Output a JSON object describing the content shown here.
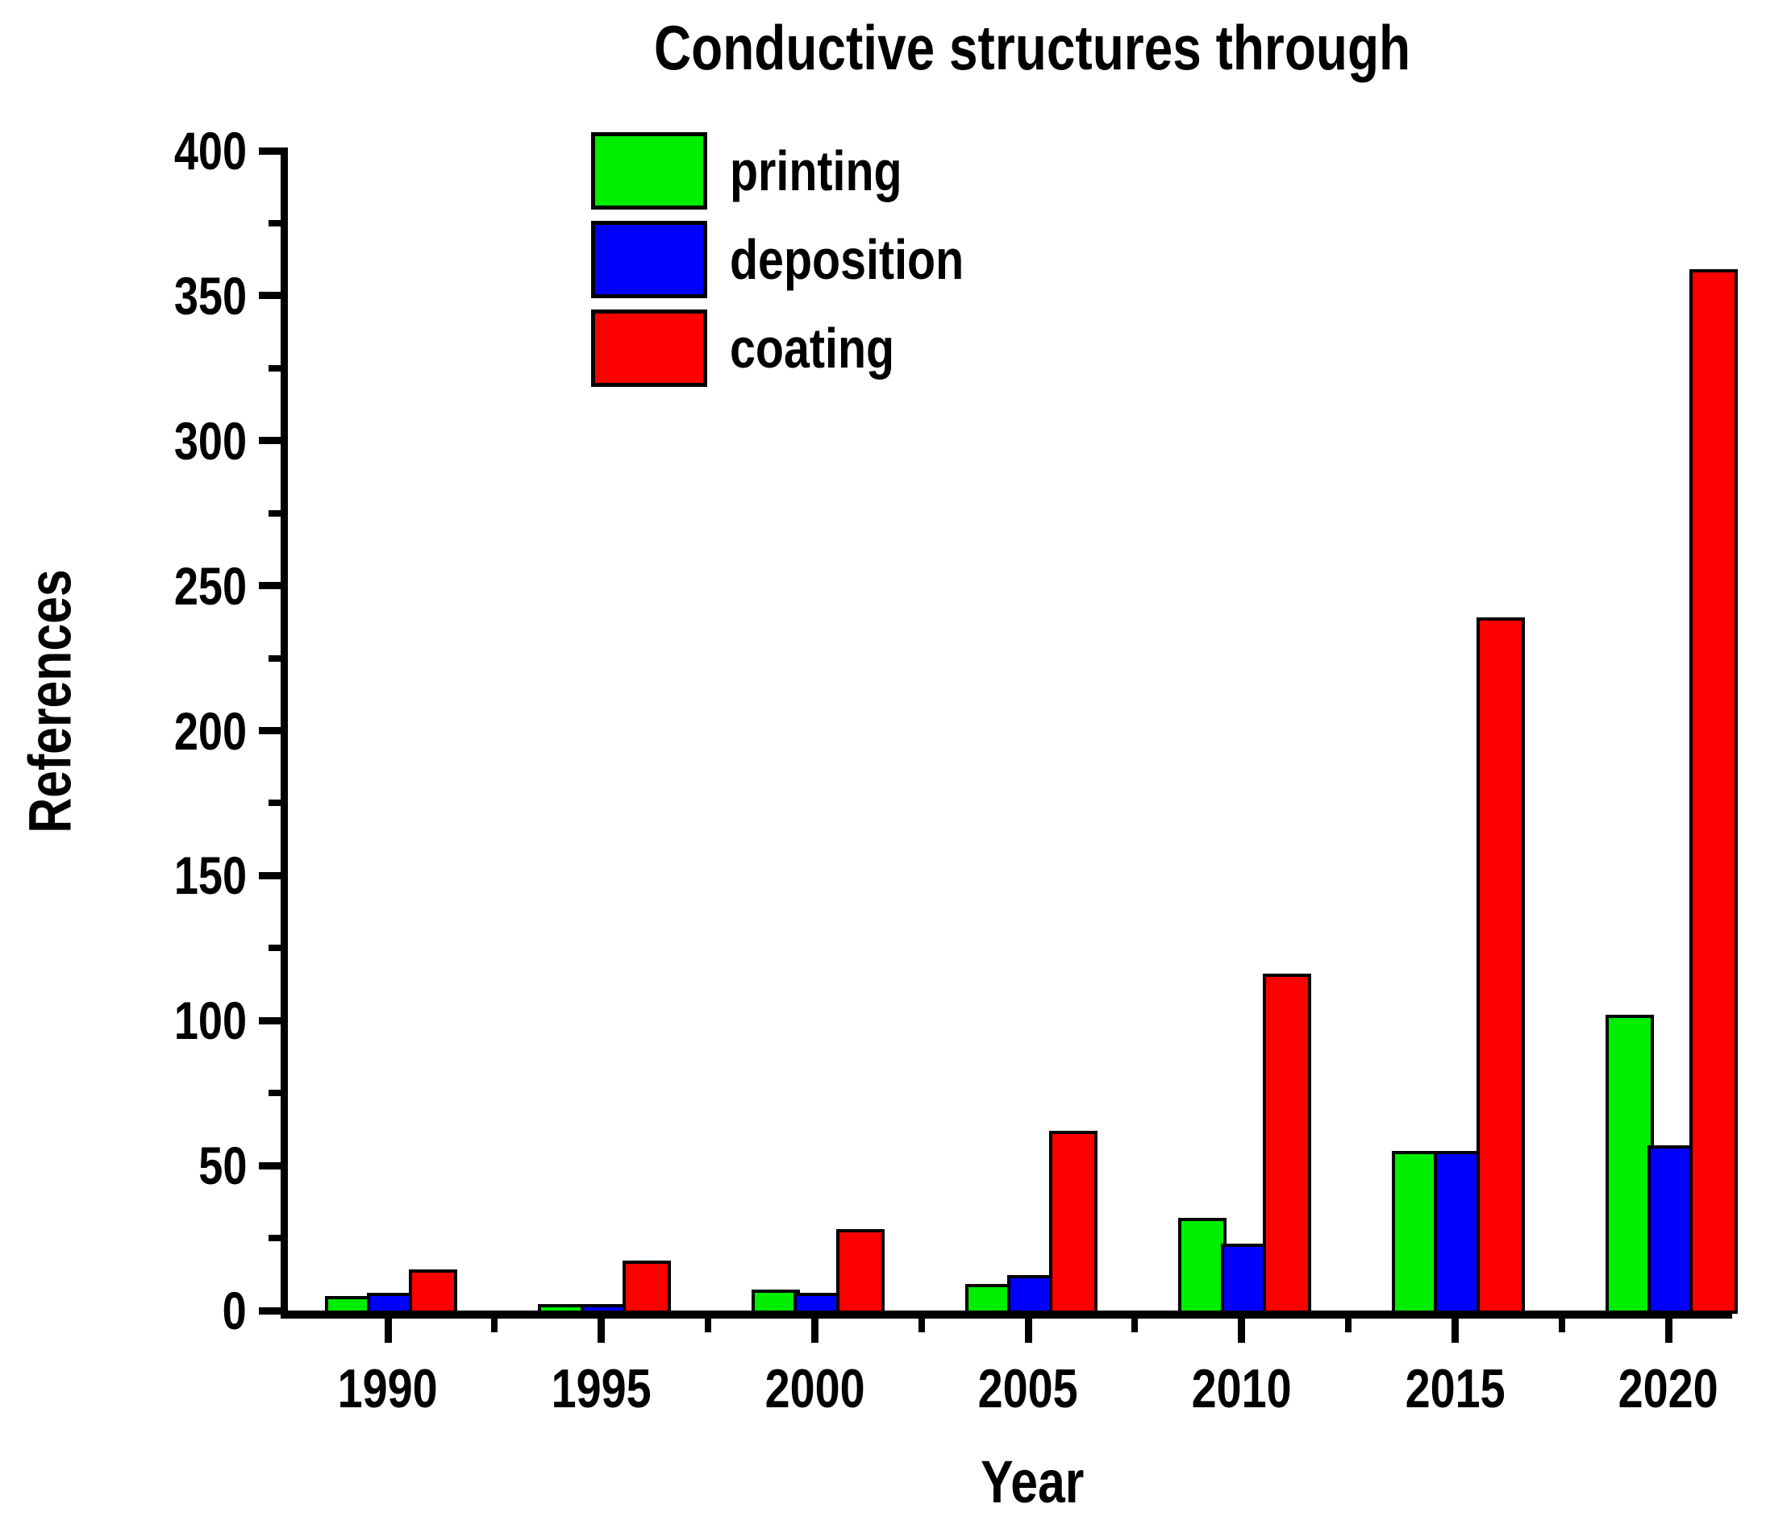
{
  "chart_data": {
    "type": "bar",
    "title": "Conductive structures through",
    "xlabel": "Year",
    "ylabel": "References",
    "categories": [
      "1990",
      "1995",
      "2000",
      "2005",
      "2010",
      "2015",
      "2020"
    ],
    "series": [
      {
        "name": "printing",
        "color": "#00ee00",
        "values": [
          4,
          1,
          6,
          8,
          31,
          54,
          101
        ]
      },
      {
        "name": "deposition",
        "color": "#0000ff",
        "values": [
          5,
          1,
          5,
          11,
          22,
          54,
          56
        ]
      },
      {
        "name": "coating",
        "color": "#ff0000",
        "values": [
          13,
          16,
          27,
          61,
          115,
          238,
          358
        ]
      }
    ],
    "ylim": [
      0,
      400
    ],
    "y_ticks": [
      0,
      50,
      100,
      150,
      200,
      250,
      300,
      350,
      400
    ],
    "y_minor_step": 25,
    "x_minor_ticks": "midpoints-between-years",
    "grid": false,
    "legend_position": "top-left-inside",
    "bar_outline_color": "#000000",
    "axis_color": "#000000",
    "background_color": "#ffffff"
  }
}
